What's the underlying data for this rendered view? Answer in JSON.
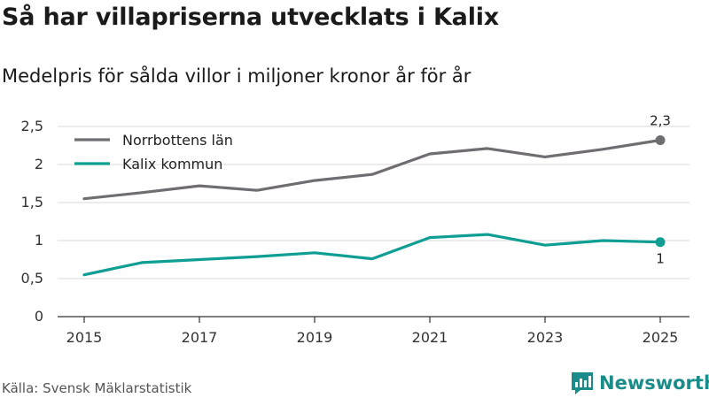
{
  "title": "Så har villapriserna utvecklats i Kalix",
  "subtitle": "Medelpris för sålda villor i miljoner kronor år för år",
  "source": "Källa: Svensk Mäklarstatistik",
  "brand": {
    "name": "Newsworthy",
    "icon": "newsworthy-logo-icon",
    "color": "#1a8d8b"
  },
  "chart_data": {
    "type": "line",
    "x": [
      2015,
      2016,
      2017,
      2018,
      2019,
      2020,
      2021,
      2022,
      2023,
      2024,
      2025
    ],
    "xticks": [
      2015,
      2017,
      2019,
      2021,
      2023,
      2025
    ],
    "yticks": [
      0,
      0.5,
      1,
      1.5,
      2,
      2.5
    ],
    "ytick_labels": [
      "0",
      "0,5",
      "1",
      "1,5",
      "2",
      "2,5"
    ],
    "ylim": [
      0,
      2.5
    ],
    "xlim": [
      2015,
      2025
    ],
    "grid": true,
    "legend": "top-left",
    "series": [
      {
        "name": "Norrbottens län",
        "color": "#6f6d72",
        "values": [
          1.55,
          1.63,
          1.72,
          1.66,
          1.79,
          1.87,
          2.14,
          2.21,
          2.1,
          2.2,
          2.32
        ],
        "end_label": "2,3"
      },
      {
        "name": "Kalix kommun",
        "color": "#0f9e94",
        "values": [
          0.55,
          0.71,
          0.75,
          0.79,
          0.84,
          0.76,
          1.04,
          1.08,
          0.94,
          1.0,
          0.98
        ],
        "end_label": "1"
      }
    ]
  }
}
